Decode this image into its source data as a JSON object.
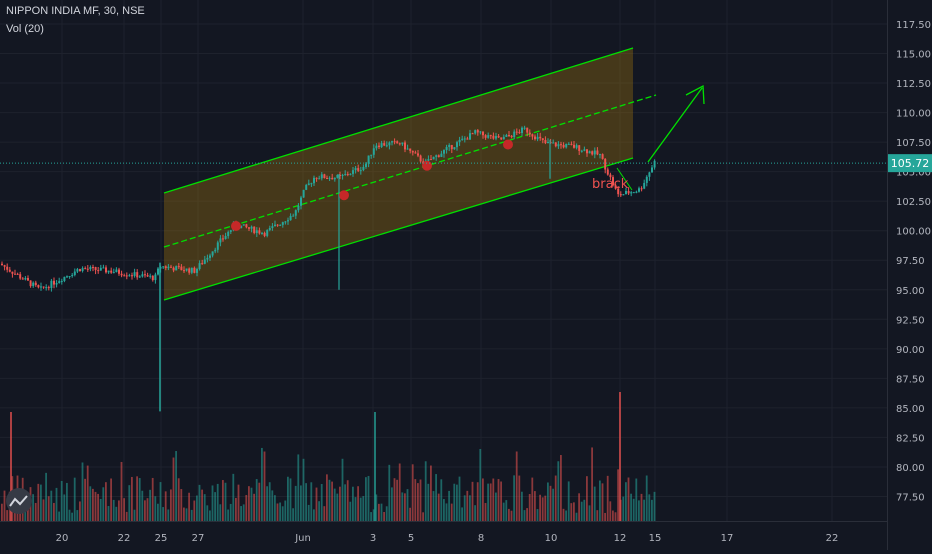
{
  "header": {
    "symbol_line": "NIPPON INDIA MF, 30, NSE",
    "volume_line": "Vol (20)"
  },
  "colors": {
    "background": "#131722",
    "up": "#26a69a",
    "down": "#ef5350",
    "channel": "#00e000",
    "channel_fill": "#b8860b",
    "annotation": "#ef5350",
    "price_line": "#26a69a",
    "marker": "#c62828"
  },
  "chart_data": {
    "type": "candlestick",
    "y_ticks": [
      "117.50",
      "115.00",
      "112.50",
      "110.00",
      "107.50",
      "105.00",
      "102.50",
      "100.00",
      "97.50",
      "95.00",
      "92.50",
      "90.00",
      "87.50",
      "85.00",
      "82.50",
      "80.00",
      "77.50"
    ],
    "x_ticks": [
      "20",
      "22",
      "25",
      "27",
      "Jun",
      "3",
      "5",
      "8",
      "10",
      "12",
      "15",
      "17",
      "22"
    ],
    "last_price": "105.72",
    "annotation": "brack",
    "logo": "TradingView logo"
  }
}
